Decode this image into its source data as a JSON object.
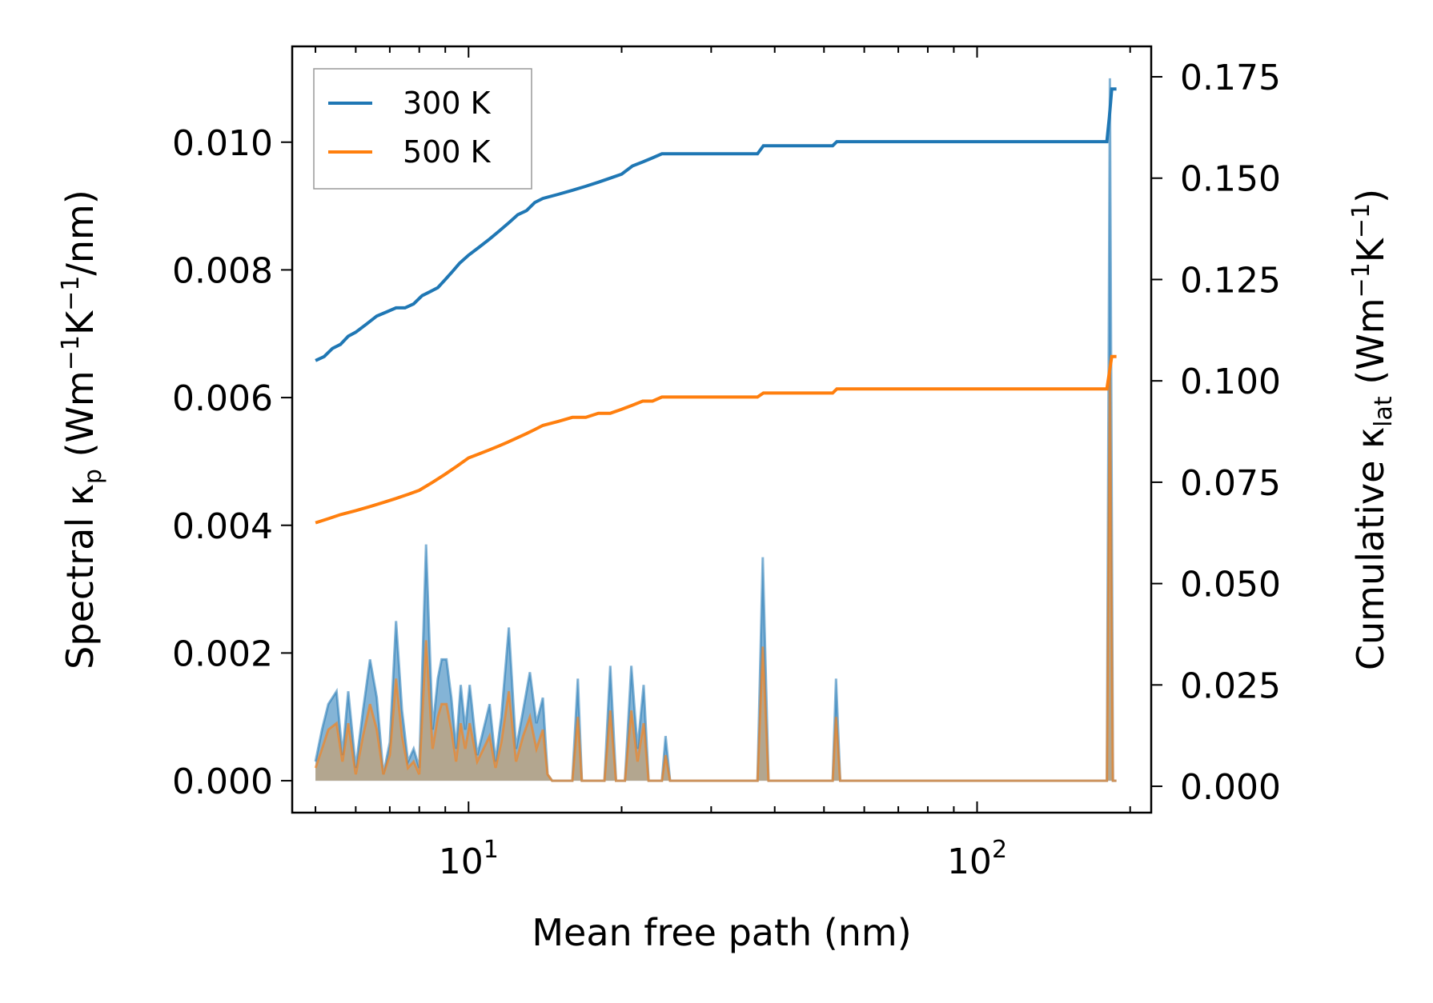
{
  "chart_data": {
    "type": "line",
    "xlabel": "Mean free path (nm)",
    "ylabel_left_parts": [
      "Spectral κ",
      "p",
      " (Wm",
      "−1",
      "K",
      "−1",
      "/nm)"
    ],
    "ylabel_right_parts": [
      "Cumulative κ",
      "lat",
      " (Wm",
      "−1",
      "K",
      "−1",
      ")"
    ],
    "x_scale": "log",
    "xlim": [
      4.5,
      220
    ],
    "ylim_left": [
      -0.0005,
      0.0115
    ],
    "ylim_right": [
      -0.0065,
      0.1825
    ],
    "x_ticks": [
      {
        "value": 10,
        "base": "10",
        "exp": "1"
      },
      {
        "value": 100,
        "base": "10",
        "exp": "2"
      }
    ],
    "y_left_ticks": [
      {
        "value": 0.0,
        "label": "0.000"
      },
      {
        "value": 0.002,
        "label": "0.002"
      },
      {
        "value": 0.004,
        "label": "0.004"
      },
      {
        "value": 0.006,
        "label": "0.006"
      },
      {
        "value": 0.008,
        "label": "0.008"
      },
      {
        "value": 0.01,
        "label": "0.010"
      }
    ],
    "y_right_ticks": [
      {
        "value": 0.0,
        "label": "0.000"
      },
      {
        "value": 0.025,
        "label": "0.025"
      },
      {
        "value": 0.05,
        "label": "0.050"
      },
      {
        "value": 0.075,
        "label": "0.075"
      },
      {
        "value": 0.1,
        "label": "0.100"
      },
      {
        "value": 0.125,
        "label": "0.125"
      },
      {
        "value": 0.15,
        "label": "0.150"
      },
      {
        "value": 0.175,
        "label": "0.175"
      }
    ],
    "legend": {
      "position": "upper-left",
      "entries": [
        "300 K",
        "500 K"
      ]
    },
    "colors": {
      "s300": "#1f77b4",
      "s500": "#ff7f0e",
      "fill300": "#1f77b4",
      "fill500": "#c8a070"
    },
    "series": [
      {
        "name": "300 K",
        "axis": "right",
        "role": "cumulative",
        "points": [
          [
            5.0,
            0.105
          ],
          [
            5.2,
            0.106
          ],
          [
            5.4,
            0.108
          ],
          [
            5.6,
            0.109
          ],
          [
            5.8,
            0.111
          ],
          [
            6.0,
            0.112
          ],
          [
            6.3,
            0.114
          ],
          [
            6.6,
            0.116
          ],
          [
            6.9,
            0.117
          ],
          [
            7.2,
            0.118
          ],
          [
            7.5,
            0.118
          ],
          [
            7.8,
            0.119
          ],
          [
            8.1,
            0.121
          ],
          [
            8.4,
            0.122
          ],
          [
            8.7,
            0.123
          ],
          [
            9.0,
            0.125
          ],
          [
            9.3,
            0.127
          ],
          [
            9.6,
            0.129
          ],
          [
            10.0,
            0.131
          ],
          [
            10.5,
            0.133
          ],
          [
            11.0,
            0.135
          ],
          [
            11.5,
            0.137
          ],
          [
            12.0,
            0.139
          ],
          [
            12.5,
            0.141
          ],
          [
            13.0,
            0.142
          ],
          [
            13.5,
            0.144
          ],
          [
            14.0,
            0.145
          ],
          [
            15.0,
            0.146
          ],
          [
            16.0,
            0.147
          ],
          [
            17.0,
            0.148
          ],
          [
            18.0,
            0.149
          ],
          [
            19.0,
            0.15
          ],
          [
            20.0,
            0.151
          ],
          [
            21.0,
            0.153
          ],
          [
            22.0,
            0.154
          ],
          [
            23.0,
            0.155
          ],
          [
            24.0,
            0.156
          ],
          [
            25.0,
            0.156
          ],
          [
            30.0,
            0.156
          ],
          [
            37.0,
            0.156
          ],
          [
            38.0,
            0.158
          ],
          [
            45.0,
            0.158
          ],
          [
            52.0,
            0.158
          ],
          [
            53.0,
            0.159
          ],
          [
            100.0,
            0.159
          ],
          [
            180.0,
            0.159
          ],
          [
            182.0,
            0.165
          ],
          [
            184.0,
            0.172
          ],
          [
            188.0,
            0.172
          ]
        ]
      },
      {
        "name": "500 K",
        "axis": "right",
        "role": "cumulative",
        "points": [
          [
            5.0,
            0.065
          ],
          [
            5.3,
            0.066
          ],
          [
            5.6,
            0.067
          ],
          [
            6.0,
            0.068
          ],
          [
            6.4,
            0.069
          ],
          [
            6.8,
            0.07
          ],
          [
            7.2,
            0.071
          ],
          [
            7.6,
            0.072
          ],
          [
            8.0,
            0.073
          ],
          [
            8.5,
            0.075
          ],
          [
            9.0,
            0.077
          ],
          [
            9.5,
            0.079
          ],
          [
            10.0,
            0.081
          ],
          [
            10.5,
            0.082
          ],
          [
            11.0,
            0.083
          ],
          [
            11.5,
            0.084
          ],
          [
            12.0,
            0.085
          ],
          [
            12.5,
            0.086
          ],
          [
            13.0,
            0.087
          ],
          [
            13.5,
            0.088
          ],
          [
            14.0,
            0.089
          ],
          [
            15.0,
            0.09
          ],
          [
            16.0,
            0.091
          ],
          [
            17.0,
            0.091
          ],
          [
            18.0,
            0.092
          ],
          [
            19.0,
            0.092
          ],
          [
            20.0,
            0.093
          ],
          [
            21.0,
            0.094
          ],
          [
            22.0,
            0.095
          ],
          [
            23.0,
            0.095
          ],
          [
            24.0,
            0.096
          ],
          [
            25.0,
            0.096
          ],
          [
            30.0,
            0.096
          ],
          [
            37.0,
            0.096
          ],
          [
            38.0,
            0.097
          ],
          [
            45.0,
            0.097
          ],
          [
            52.0,
            0.097
          ],
          [
            53.0,
            0.098
          ],
          [
            100.0,
            0.098
          ],
          [
            180.0,
            0.098
          ],
          [
            182.0,
            0.102
          ],
          [
            184.0,
            0.106
          ],
          [
            188.0,
            0.106
          ]
        ]
      },
      {
        "name": "300 K spectral",
        "axis": "left",
        "role": "spectral",
        "points": [
          [
            5.0,
            0.0003
          ],
          [
            5.15,
            0.0008
          ],
          [
            5.3,
            0.0012
          ],
          [
            5.5,
            0.0014
          ],
          [
            5.65,
            0.0004
          ],
          [
            5.8,
            0.0014
          ],
          [
            6.0,
            0.0002
          ],
          [
            6.2,
            0.0011
          ],
          [
            6.4,
            0.0019
          ],
          [
            6.6,
            0.0013
          ],
          [
            6.8,
            0.0001
          ],
          [
            7.0,
            0.0006
          ],
          [
            7.2,
            0.0025
          ],
          [
            7.4,
            0.0011
          ],
          [
            7.6,
            0.0003
          ],
          [
            7.8,
            0.0005
          ],
          [
            8.0,
            0.0002
          ],
          [
            8.25,
            0.0037
          ],
          [
            8.5,
            0.0008
          ],
          [
            8.7,
            0.0016
          ],
          [
            8.85,
            0.0019
          ],
          [
            9.05,
            0.0019
          ],
          [
            9.25,
            0.0013
          ],
          [
            9.45,
            0.0005
          ],
          [
            9.65,
            0.0015
          ],
          [
            9.85,
            0.0008
          ],
          [
            10.05,
            0.0015
          ],
          [
            10.4,
            0.0004
          ],
          [
            10.7,
            0.0008
          ],
          [
            11.0,
            0.0012
          ],
          [
            11.3,
            0.0003
          ],
          [
            11.6,
            0.001
          ],
          [
            12.0,
            0.0024
          ],
          [
            12.4,
            0.0005
          ],
          [
            12.8,
            0.0011
          ],
          [
            13.2,
            0.0017
          ],
          [
            13.6,
            0.0009
          ],
          [
            14.0,
            0.0013
          ],
          [
            14.3,
            0.0001
          ],
          [
            14.6,
            0.0
          ],
          [
            16.0,
            0.0
          ],
          [
            16.4,
            0.0016
          ],
          [
            16.7,
            0.0
          ],
          [
            18.5,
            0.0
          ],
          [
            19.0,
            0.0018
          ],
          [
            19.5,
            0.0
          ],
          [
            20.3,
            0.0
          ],
          [
            20.9,
            0.0018
          ],
          [
            21.5,
            0.0005
          ],
          [
            22.1,
            0.0015
          ],
          [
            22.6,
            0.0
          ],
          [
            24.0,
            0.0
          ],
          [
            24.4,
            0.0007
          ],
          [
            24.9,
            0.0
          ],
          [
            37.0,
            0.0
          ],
          [
            37.9,
            0.0035
          ],
          [
            38.9,
            0.0
          ],
          [
            52.0,
            0.0
          ],
          [
            52.8,
            0.0016
          ],
          [
            53.8,
            0.0
          ],
          [
            180.0,
            0.0
          ],
          [
            182.5,
            0.011
          ],
          [
            185.0,
            0.0
          ],
          [
            188.0,
            0.0
          ]
        ]
      },
      {
        "name": "500 K spectral",
        "axis": "left",
        "role": "spectral",
        "points": [
          [
            5.0,
            0.0002
          ],
          [
            5.15,
            0.0005
          ],
          [
            5.3,
            0.0008
          ],
          [
            5.5,
            0.0009
          ],
          [
            5.65,
            0.0003
          ],
          [
            5.8,
            0.0009
          ],
          [
            6.0,
            0.0001
          ],
          [
            6.2,
            0.0007
          ],
          [
            6.4,
            0.0012
          ],
          [
            6.6,
            0.0008
          ],
          [
            6.8,
            0.0001
          ],
          [
            7.0,
            0.0004
          ],
          [
            7.2,
            0.0016
          ],
          [
            7.4,
            0.0007
          ],
          [
            7.6,
            0.0002
          ],
          [
            7.8,
            0.0003
          ],
          [
            8.0,
            0.0001
          ],
          [
            8.25,
            0.0022
          ],
          [
            8.5,
            0.0005
          ],
          [
            8.7,
            0.001
          ],
          [
            8.85,
            0.0012
          ],
          [
            9.05,
            0.0012
          ],
          [
            9.25,
            0.0008
          ],
          [
            9.45,
            0.0003
          ],
          [
            9.65,
            0.0009
          ],
          [
            9.85,
            0.0005
          ],
          [
            10.05,
            0.0009
          ],
          [
            10.4,
            0.0003
          ],
          [
            10.7,
            0.0005
          ],
          [
            11.0,
            0.0007
          ],
          [
            11.3,
            0.0002
          ],
          [
            11.6,
            0.0006
          ],
          [
            12.0,
            0.0014
          ],
          [
            12.4,
            0.0003
          ],
          [
            12.8,
            0.0007
          ],
          [
            13.2,
            0.001
          ],
          [
            13.6,
            0.0005
          ],
          [
            14.0,
            0.0008
          ],
          [
            14.3,
            0.0001
          ],
          [
            14.6,
            0.0
          ],
          [
            16.0,
            0.0
          ],
          [
            16.4,
            0.001
          ],
          [
            16.7,
            0.0
          ],
          [
            18.5,
            0.0
          ],
          [
            19.0,
            0.0011
          ],
          [
            19.5,
            0.0
          ],
          [
            20.3,
            0.0
          ],
          [
            20.9,
            0.0011
          ],
          [
            21.5,
            0.0003
          ],
          [
            22.1,
            0.0009
          ],
          [
            22.6,
            0.0
          ],
          [
            24.0,
            0.0
          ],
          [
            24.4,
            0.0004
          ],
          [
            24.9,
            0.0
          ],
          [
            37.0,
            0.0
          ],
          [
            37.9,
            0.0021
          ],
          [
            38.9,
            0.0
          ],
          [
            52.0,
            0.0
          ],
          [
            52.8,
            0.001
          ],
          [
            53.8,
            0.0
          ],
          [
            180.0,
            0.0
          ],
          [
            182.5,
            0.0065
          ],
          [
            185.0,
            0.0
          ],
          [
            188.0,
            0.0
          ]
        ]
      }
    ]
  }
}
